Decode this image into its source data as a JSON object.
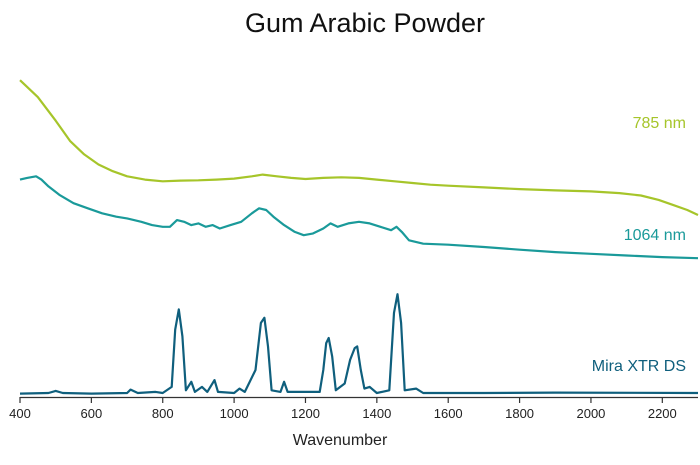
{
  "chart_data": {
    "type": "line",
    "title": "Gum Arabic Powder",
    "xlabel": "Wavenumber",
    "ylabel": "",
    "xlim": [
      400,
      2300
    ],
    "xticks": [
      400,
      600,
      800,
      1000,
      1200,
      1400,
      1600,
      1800,
      2000,
      2200
    ],
    "y_axis_shown": false,
    "grid": false,
    "legend": "inline labels at right",
    "series": [
      {
        "name": "785 nm",
        "color": "#a6c52a",
        "points": [
          [
            400,
            0.94
          ],
          [
            450,
            0.89
          ],
          [
            500,
            0.82
          ],
          [
            540,
            0.76
          ],
          [
            580,
            0.72
          ],
          [
            620,
            0.69
          ],
          [
            660,
            0.67
          ],
          [
            700,
            0.655
          ],
          [
            750,
            0.645
          ],
          [
            800,
            0.64
          ],
          [
            850,
            0.642
          ],
          [
            900,
            0.643
          ],
          [
            950,
            0.645
          ],
          [
            1000,
            0.648
          ],
          [
            1050,
            0.655
          ],
          [
            1080,
            0.66
          ],
          [
            1120,
            0.655
          ],
          [
            1160,
            0.65
          ],
          [
            1200,
            0.647
          ],
          [
            1250,
            0.65
          ],
          [
            1300,
            0.652
          ],
          [
            1350,
            0.65
          ],
          [
            1400,
            0.645
          ],
          [
            1450,
            0.64
          ],
          [
            1500,
            0.635
          ],
          [
            1550,
            0.63
          ],
          [
            1600,
            0.627
          ],
          [
            1700,
            0.622
          ],
          [
            1800,
            0.617
          ],
          [
            1900,
            0.613
          ],
          [
            2000,
            0.61
          ],
          [
            2080,
            0.605
          ],
          [
            2140,
            0.598
          ],
          [
            2190,
            0.585
          ],
          [
            2230,
            0.57
          ],
          [
            2270,
            0.555
          ],
          [
            2300,
            0.54
          ]
        ]
      },
      {
        "name": "1064 nm",
        "color": "#1a9a9a",
        "points": [
          [
            400,
            0.645
          ],
          [
            420,
            0.65
          ],
          [
            445,
            0.655
          ],
          [
            460,
            0.645
          ],
          [
            480,
            0.625
          ],
          [
            510,
            0.6
          ],
          [
            550,
            0.575
          ],
          [
            590,
            0.56
          ],
          [
            630,
            0.545
          ],
          [
            670,
            0.535
          ],
          [
            700,
            0.53
          ],
          [
            740,
            0.52
          ],
          [
            770,
            0.51
          ],
          [
            800,
            0.505
          ],
          [
            820,
            0.505
          ],
          [
            840,
            0.525
          ],
          [
            860,
            0.52
          ],
          [
            880,
            0.51
          ],
          [
            900,
            0.515
          ],
          [
            920,
            0.505
          ],
          [
            940,
            0.51
          ],
          [
            960,
            0.5
          ],
          [
            990,
            0.51
          ],
          [
            1020,
            0.52
          ],
          [
            1050,
            0.545
          ],
          [
            1070,
            0.56
          ],
          [
            1090,
            0.555
          ],
          [
            1110,
            0.535
          ],
          [
            1140,
            0.51
          ],
          [
            1170,
            0.49
          ],
          [
            1195,
            0.48
          ],
          [
            1220,
            0.485
          ],
          [
            1250,
            0.5
          ],
          [
            1270,
            0.515
          ],
          [
            1290,
            0.505
          ],
          [
            1320,
            0.515
          ],
          [
            1350,
            0.52
          ],
          [
            1380,
            0.515
          ],
          [
            1410,
            0.505
          ],
          [
            1440,
            0.495
          ],
          [
            1455,
            0.505
          ],
          [
            1470,
            0.49
          ],
          [
            1490,
            0.465
          ],
          [
            1530,
            0.455
          ],
          [
            1600,
            0.452
          ],
          [
            1700,
            0.445
          ],
          [
            1800,
            0.437
          ],
          [
            1900,
            0.43
          ],
          [
            2000,
            0.425
          ],
          [
            2100,
            0.42
          ],
          [
            2200,
            0.415
          ],
          [
            2300,
            0.412
          ]
        ]
      },
      {
        "name": "Mira XTR DS",
        "color": "#0f5f7d",
        "points": [
          [
            400,
            0.01
          ],
          [
            480,
            0.012
          ],
          [
            500,
            0.018
          ],
          [
            520,
            0.012
          ],
          [
            600,
            0.01
          ],
          [
            700,
            0.012
          ],
          [
            710,
            0.022
          ],
          [
            730,
            0.012
          ],
          [
            780,
            0.015
          ],
          [
            800,
            0.012
          ],
          [
            825,
            0.03
          ],
          [
            835,
            0.2
          ],
          [
            845,
            0.26
          ],
          [
            855,
            0.18
          ],
          [
            865,
            0.02
          ],
          [
            880,
            0.045
          ],
          [
            890,
            0.015
          ],
          [
            910,
            0.03
          ],
          [
            925,
            0.015
          ],
          [
            945,
            0.05
          ],
          [
            955,
            0.015
          ],
          [
            1000,
            0.012
          ],
          [
            1015,
            0.025
          ],
          [
            1030,
            0.015
          ],
          [
            1060,
            0.08
          ],
          [
            1075,
            0.22
          ],
          [
            1085,
            0.235
          ],
          [
            1095,
            0.15
          ],
          [
            1105,
            0.02
          ],
          [
            1130,
            0.015
          ],
          [
            1140,
            0.045
          ],
          [
            1150,
            0.015
          ],
          [
            1240,
            0.015
          ],
          [
            1250,
            0.08
          ],
          [
            1258,
            0.16
          ],
          [
            1265,
            0.175
          ],
          [
            1275,
            0.12
          ],
          [
            1285,
            0.02
          ],
          [
            1310,
            0.04
          ],
          [
            1325,
            0.11
          ],
          [
            1338,
            0.145
          ],
          [
            1345,
            0.15
          ],
          [
            1355,
            0.08
          ],
          [
            1365,
            0.025
          ],
          [
            1380,
            0.03
          ],
          [
            1400,
            0.012
          ],
          [
            1435,
            0.02
          ],
          [
            1448,
            0.25
          ],
          [
            1458,
            0.305
          ],
          [
            1468,
            0.22
          ],
          [
            1478,
            0.02
          ],
          [
            1510,
            0.025
          ],
          [
            1530,
            0.012
          ],
          [
            1700,
            0.012
          ],
          [
            1900,
            0.013
          ],
          [
            2300,
            0.012
          ]
        ]
      }
    ]
  }
}
